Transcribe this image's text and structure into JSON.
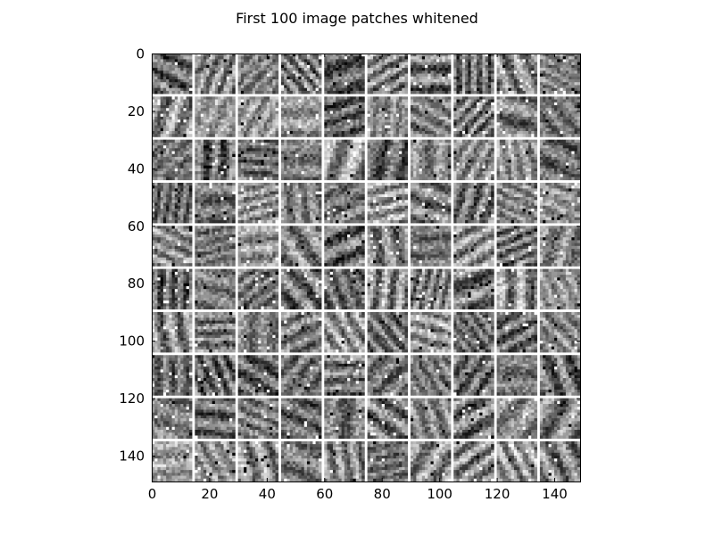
{
  "chart_data": {
    "type": "heatmap",
    "title": "First 100 image patches whitened",
    "xlabel": "",
    "ylabel": "",
    "colormap": "gray",
    "grid": false,
    "origin": "top-left",
    "image_extent": [
      0,
      149
    ],
    "patch_grid": {
      "rows": 10,
      "cols": 10,
      "patch_size": 14,
      "separator_px": 1,
      "separator_color": "#ffffff"
    },
    "xlim": [
      0,
      149
    ],
    "ylim": [
      149,
      0
    ],
    "x_ticks": [
      0,
      20,
      40,
      60,
      80,
      100,
      120,
      140
    ],
    "y_ticks": [
      0,
      20,
      40,
      60,
      80,
      100,
      120,
      140
    ],
    "x_tick_labels": [
      "0",
      "20",
      "40",
      "60",
      "80",
      "100",
      "120",
      "140"
    ],
    "y_tick_labels": [
      "0",
      "20",
      "40",
      "60",
      "80",
      "100",
      "120",
      "140"
    ],
    "patch_mean_brightness": [
      [
        0.42,
        0.55,
        0.5,
        0.48,
        0.35,
        0.52,
        0.47,
        0.44,
        0.53,
        0.51
      ],
      [
        0.56,
        0.62,
        0.6,
        0.58,
        0.38,
        0.55,
        0.5,
        0.46,
        0.49,
        0.45
      ],
      [
        0.45,
        0.4,
        0.43,
        0.47,
        0.6,
        0.38,
        0.53,
        0.56,
        0.58,
        0.42
      ],
      [
        0.41,
        0.44,
        0.57,
        0.5,
        0.46,
        0.6,
        0.49,
        0.45,
        0.52,
        0.58
      ],
      [
        0.55,
        0.47,
        0.6,
        0.52,
        0.42,
        0.5,
        0.46,
        0.57,
        0.44,
        0.53
      ],
      [
        0.38,
        0.5,
        0.43,
        0.46,
        0.41,
        0.53,
        0.49,
        0.45,
        0.56,
        0.59
      ],
      [
        0.54,
        0.48,
        0.51,
        0.49,
        0.58,
        0.42,
        0.6,
        0.43,
        0.4,
        0.52
      ],
      [
        0.43,
        0.4,
        0.38,
        0.44,
        0.47,
        0.45,
        0.48,
        0.41,
        0.46,
        0.42
      ],
      [
        0.5,
        0.44,
        0.49,
        0.4,
        0.46,
        0.47,
        0.52,
        0.45,
        0.55,
        0.5
      ],
      [
        0.62,
        0.56,
        0.58,
        0.48,
        0.54,
        0.44,
        0.56,
        0.55,
        0.6,
        0.5
      ]
    ]
  }
}
